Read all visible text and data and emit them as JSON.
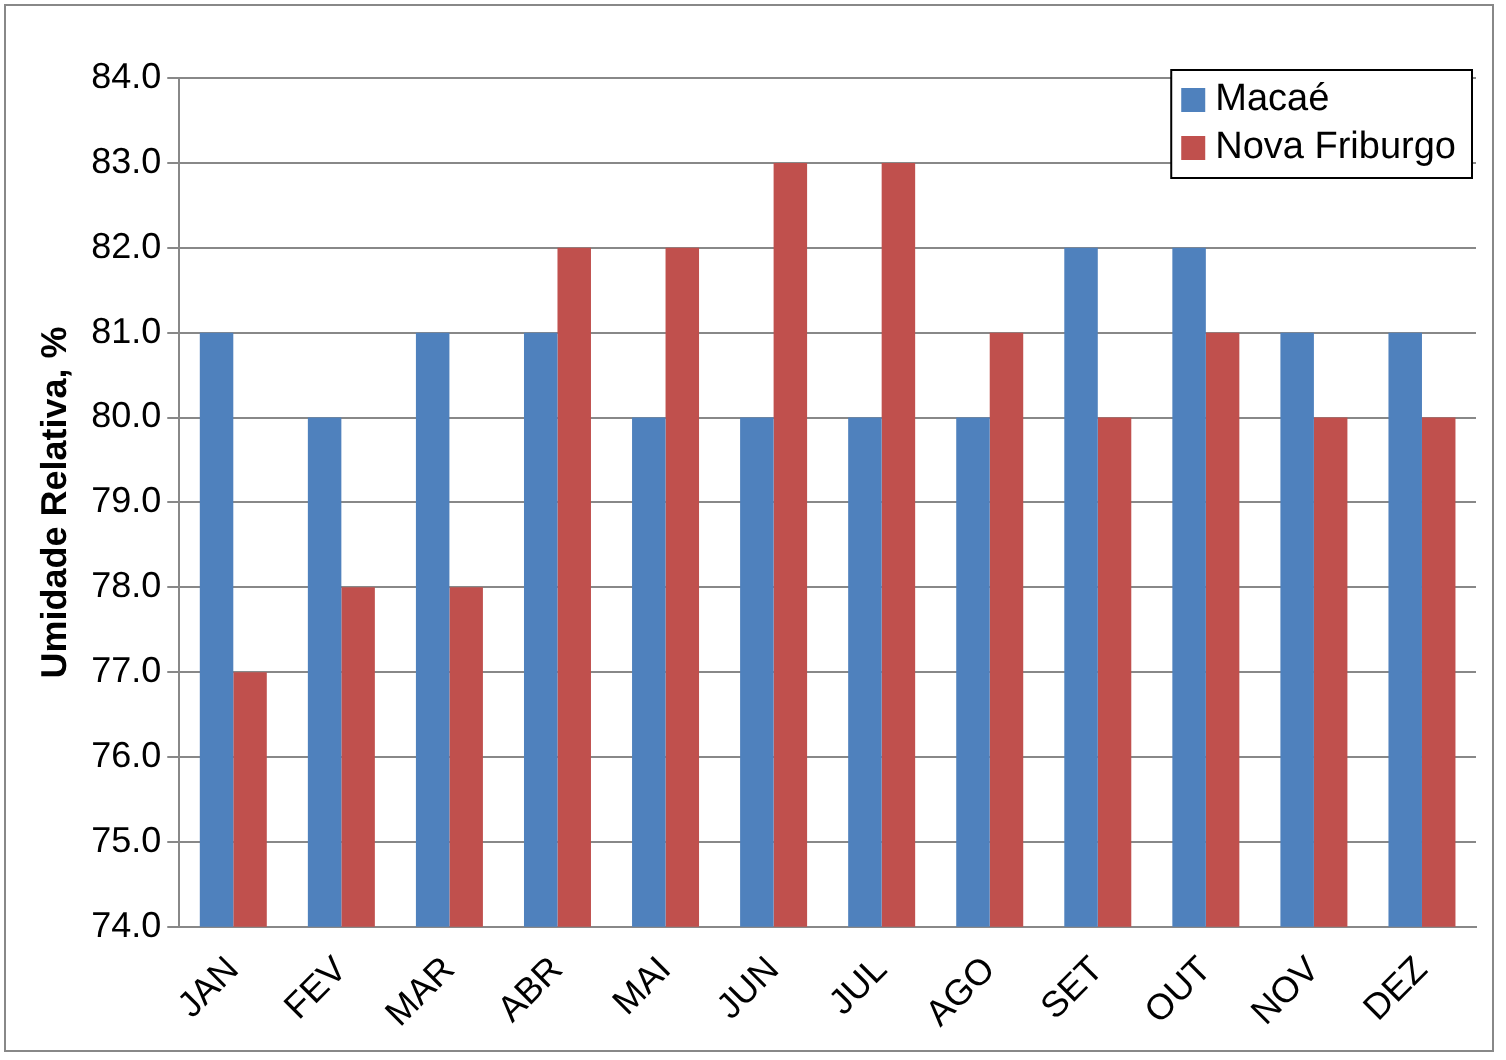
{
  "chart_data": {
    "type": "bar",
    "ylabel": "Umidade Relativa, %",
    "categories": [
      "JAN",
      "FEV",
      "MAR",
      "ABR",
      "MAI",
      "JUN",
      "JUL",
      "AGO",
      "SET",
      "OUT",
      "NOV",
      "DEZ"
    ],
    "series": [
      {
        "name": "Macaé",
        "color": "#4f81bd",
        "values": [
          81,
          80,
          81,
          81,
          80,
          80,
          80,
          80,
          82,
          82,
          81,
          81
        ]
      },
      {
        "name": "Nova Friburgo",
        "color": "#c0504d",
        "values": [
          77,
          78,
          78,
          82,
          82,
          83,
          83,
          81,
          80,
          81,
          80,
          80
        ]
      }
    ],
    "ylim": [
      74,
      84
    ],
    "yticks": [
      {
        "value": 74,
        "label": "74.0"
      },
      {
        "value": 75,
        "label": "75.0"
      },
      {
        "value": 76,
        "label": "76.0"
      },
      {
        "value": 77,
        "label": "77.0"
      },
      {
        "value": 78,
        "label": "78.0"
      },
      {
        "value": 79,
        "label": "79.0"
      },
      {
        "value": 80,
        "label": "80.0"
      },
      {
        "value": 81,
        "label": "81.0"
      },
      {
        "value": 82,
        "label": "82.0"
      },
      {
        "value": 83,
        "label": "83.0"
      },
      {
        "value": 84,
        "label": "84.0"
      }
    ],
    "grid": "y",
    "legend": "top right"
  }
}
